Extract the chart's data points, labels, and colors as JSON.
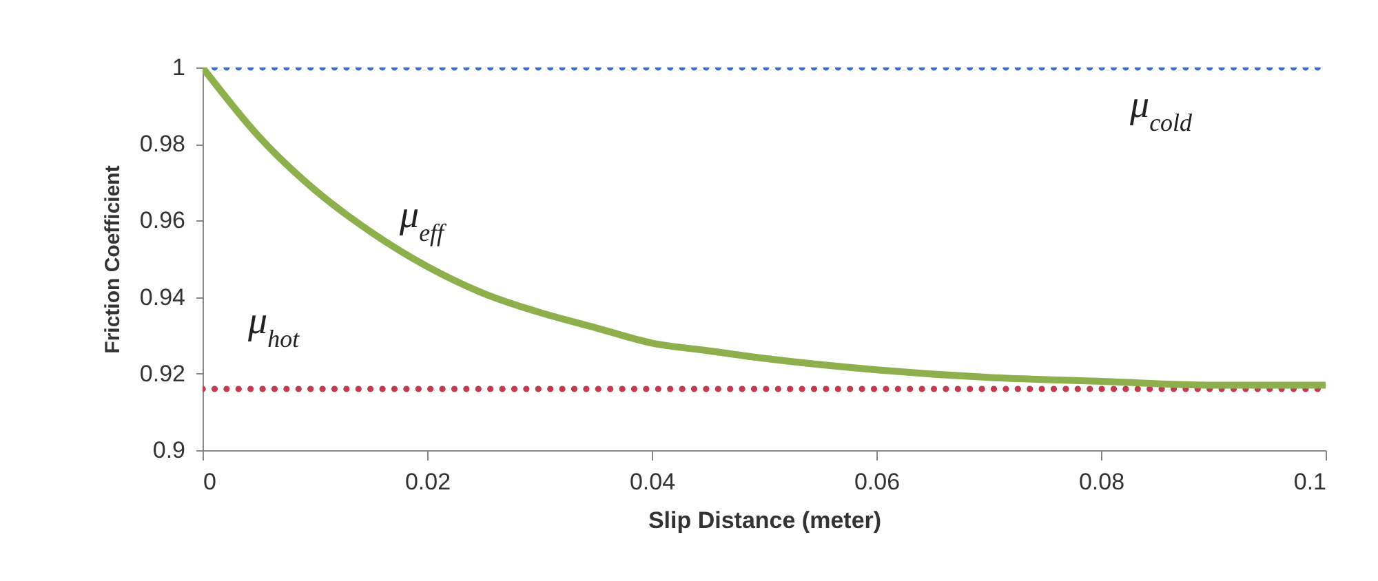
{
  "chart_data": {
    "type": "line",
    "xlabel": "Slip Distance (meter)",
    "ylabel": "Friction Coefficient",
    "x": [
      0,
      0.005,
      0.01,
      0.015,
      0.02,
      0.025,
      0.03,
      0.035,
      0.04,
      0.045,
      0.05,
      0.06,
      0.07,
      0.08,
      0.09,
      0.1
    ],
    "series": [
      {
        "name": "μ$_{cold}$",
        "color": "#3c6ec4",
        "line_style": "dotted",
        "values": [
          1,
          1,
          1,
          1,
          1,
          1,
          1,
          1,
          1,
          1,
          1,
          1,
          1,
          1,
          1,
          1
        ]
      },
      {
        "name": "μ$_{hot}$",
        "color": "#c23b4e",
        "line_style": "dotted",
        "values": [
          0.916,
          0.916,
          0.916,
          0.916,
          0.916,
          0.916,
          0.916,
          0.916,
          0.916,
          0.916,
          0.916,
          0.916,
          0.916,
          0.916,
          0.916,
          0.916
        ]
      },
      {
        "name": "μ$_{eff}$",
        "color": "#8db04c",
        "line_style": "solid",
        "values": [
          1,
          0.982,
          0.968,
          0.957,
          0.948,
          0.941,
          0.936,
          0.932,
          0.928,
          0.926,
          0.924,
          0.921,
          0.919,
          0.918,
          0.917,
          0.917
        ]
      }
    ],
    "xlim": [
      0,
      0.1
    ],
    "xticks": [
      0,
      0.02,
      0.04,
      0.06,
      0.08,
      0.1
    ],
    "ylim": [
      0.9,
      1.0
    ],
    "yticks": [
      0.9,
      0.92,
      0.94,
      0.96,
      0.98,
      1
    ],
    "grid": false,
    "marker": "none"
  }
}
